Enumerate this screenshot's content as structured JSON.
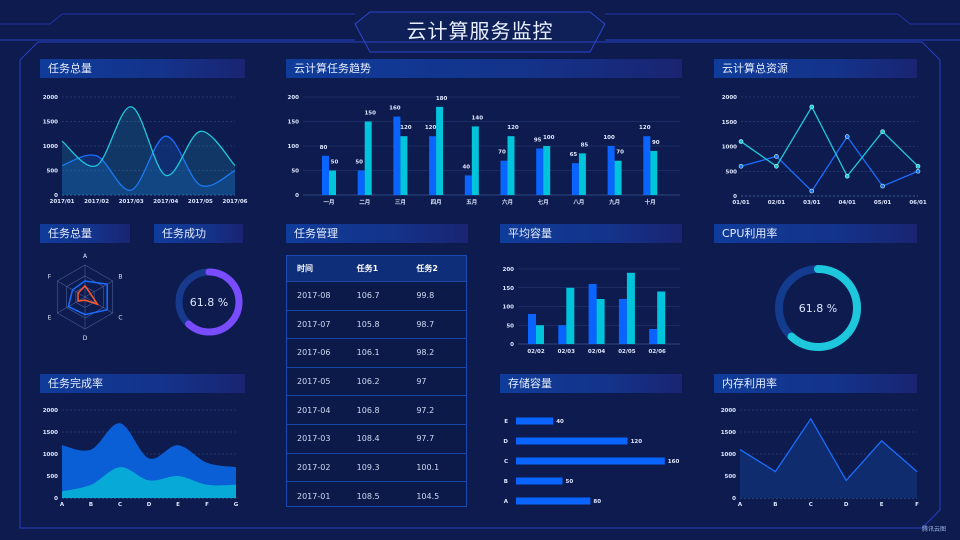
{
  "header": {
    "title": "云计算服务监控"
  },
  "panels": {
    "total_tasks": "任务总量",
    "trend": "云计算任务趋势",
    "resources": "云计算总资源",
    "radar": "任务总量",
    "success": "任务成功",
    "management": "任务管理",
    "avg_capacity": "平均容量",
    "cpu": "CPU利用率",
    "completion": "任务完成率",
    "storage": "存储容量",
    "memory": "内存利用率"
  },
  "table": {
    "columns": [
      "时间",
      "任务1",
      "任务2"
    ],
    "rows": [
      [
        "2017-08",
        "106.7",
        "99.8"
      ],
      [
        "2017-07",
        "105.8",
        "98.7"
      ],
      [
        "2017-06",
        "106.1",
        "98.2"
      ],
      [
        "2017-05",
        "106.2",
        "97"
      ],
      [
        "2017-04",
        "106.8",
        "97.2"
      ],
      [
        "2017-03",
        "108.4",
        "97.7"
      ],
      [
        "2017-02",
        "109.3",
        "100.1"
      ],
      [
        "2017-01",
        "108.5",
        "104.5"
      ]
    ]
  },
  "watermark": "腾讯云图",
  "colors": {
    "background": "#0d1b4e",
    "blue": "#1a6dff",
    "cyan": "#1ec8dc",
    "purple": "#7a4cff",
    "orange": "#ff5a2a",
    "frame": "#2b3fc4"
  },
  "chart_data": [
    {
      "id": "total_tasks",
      "type": "area",
      "smooth": true,
      "x": [
        "2017/01",
        "2017/02",
        "2017/03",
        "2017/04",
        "2017/05",
        "2017/06"
      ],
      "ylim": [
        0,
        2000
      ],
      "yticks": [
        "0",
        "500",
        "1000",
        "1500",
        "2000"
      ],
      "grid": true,
      "series": [
        {
          "values": [
            600,
            800,
            100,
            1200,
            200,
            500
          ]
        },
        {
          "values": [
            1100,
            600,
            1800,
            400,
            1300,
            600
          ]
        }
      ]
    },
    {
      "id": "trend",
      "type": "bar",
      "categories": [
        "一月",
        "二月",
        "三月",
        "四月",
        "五月",
        "六月",
        "七月",
        "八月",
        "九月",
        "十月"
      ],
      "ylim": [
        0,
        200
      ],
      "yticks": [
        "0",
        "50",
        "100",
        "150",
        "200"
      ],
      "grid": true,
      "data_labels": true,
      "series": [
        {
          "values": [
            80,
            50,
            160,
            120,
            40,
            70,
            95,
            65,
            100,
            120
          ]
        },
        {
          "values": [
            50,
            150,
            120,
            180,
            140,
            120,
            100,
            85,
            70,
            90
          ]
        }
      ]
    },
    {
      "id": "resources",
      "type": "line",
      "x": [
        "01/01",
        "02/01",
        "03/01",
        "04/01",
        "05/01",
        "06/01"
      ],
      "ylim": [
        0,
        2000
      ],
      "yticks": [
        "0",
        "500",
        "1000",
        "1500",
        "2000"
      ],
      "grid": true,
      "series": [
        {
          "values": [
            600,
            800,
            100,
            1200,
            200,
            500
          ]
        },
        {
          "values": [
            1100,
            600,
            1800,
            400,
            1300,
            600
          ]
        }
      ]
    },
    {
      "id": "radar",
      "type": "radar",
      "indicators": [
        "A",
        "B",
        "C",
        "D",
        "E",
        "F"
      ],
      "max": 1,
      "series": [
        {
          "values": [
            0.5,
            0.8,
            0.8,
            0.55,
            0.6,
            0.45
          ]
        },
        {
          "values": [
            0.35,
            0.2,
            0.45,
            0.1,
            0.25,
            0.25
          ]
        }
      ]
    },
    {
      "id": "success",
      "type": "pie",
      "value": 61.8,
      "label": "61.8 %"
    },
    {
      "id": "avg_capacity",
      "type": "bar",
      "categories": [
        "02/02",
        "02/03",
        "02/04",
        "02/05",
        "02/06"
      ],
      "ylim": [
        0,
        200
      ],
      "yticks": [
        "0",
        "50",
        "100",
        "150",
        "200"
      ],
      "grid": true,
      "series": [
        {
          "values": [
            80,
            50,
            160,
            120,
            40
          ]
        },
        {
          "values": [
            50,
            150,
            120,
            190,
            140
          ]
        }
      ]
    },
    {
      "id": "cpu",
      "type": "pie",
      "value": 61.8,
      "label": "61.8 %"
    },
    {
      "id": "completion",
      "type": "area",
      "stacked": true,
      "smooth": true,
      "x": [
        "A",
        "B",
        "C",
        "D",
        "E",
        "F",
        "G"
      ],
      "ylim": [
        0,
        2000
      ],
      "yticks": [
        "0",
        "500",
        "1000",
        "1500",
        "2000"
      ],
      "grid": true,
      "series": [
        {
          "values": [
            150,
            300,
            700,
            400,
            500,
            300,
            300
          ]
        },
        {
          "values": [
            1050,
            800,
            1000,
            500,
            700,
            500,
            400
          ]
        }
      ]
    },
    {
      "id": "storage",
      "type": "bar",
      "orientation": "horizontal",
      "categories": [
        "A",
        "B",
        "C",
        "D",
        "E"
      ],
      "values": [
        80,
        50,
        160,
        120,
        40
      ],
      "data_labels": [
        "80",
        "50",
        "160",
        "120",
        "40"
      ]
    },
    {
      "id": "memory",
      "type": "area",
      "x": [
        "A",
        "B",
        "C",
        "D",
        "E",
        "F"
      ],
      "ylim": [
        0,
        2000
      ],
      "yticks": [
        "0",
        "500",
        "1000",
        "1500",
        "2000"
      ],
      "grid": true,
      "series": [
        {
          "values": [
            1100,
            600,
            1800,
            400,
            1300,
            600
          ]
        }
      ]
    }
  ]
}
